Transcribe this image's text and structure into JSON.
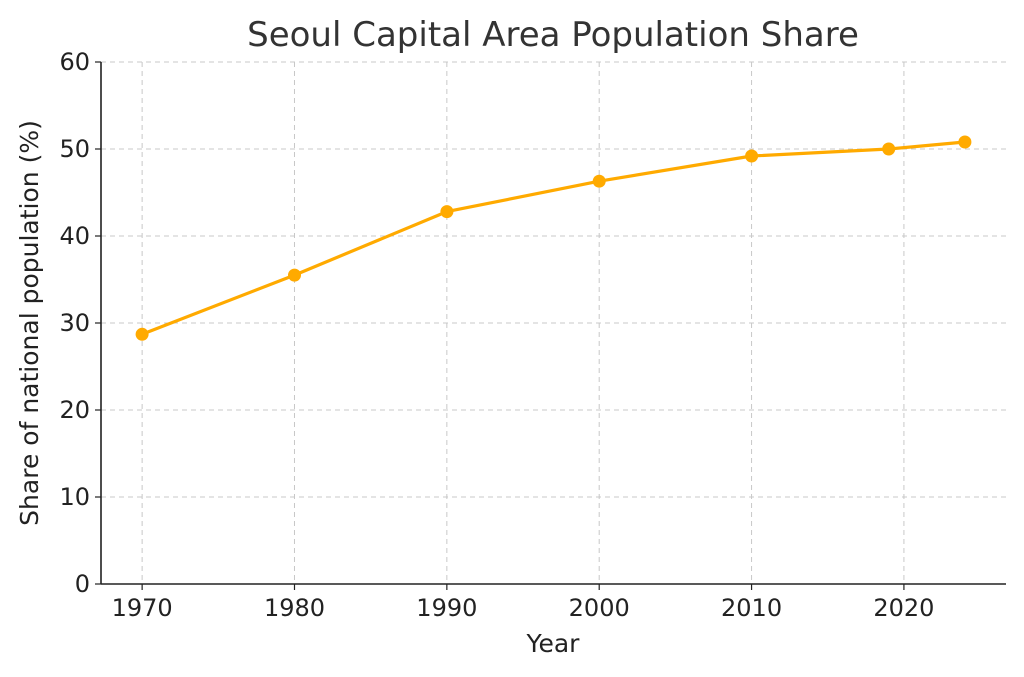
{
  "chart_data": {
    "type": "line",
    "title": "Seoul Capital Area Population Share",
    "xlabel": "Year",
    "ylabel": "Share of national population (%)",
    "x": [
      1970,
      1980,
      1990,
      2000,
      2010,
      2019,
      2024
    ],
    "series": [
      {
        "values": [
          28.7,
          35.5,
          42.8,
          46.3,
          49.2,
          50.0,
          50.8
        ]
      }
    ],
    "xticks": [
      1970,
      1980,
      1990,
      2000,
      2010,
      2020
    ],
    "xtick_labels": [
      "1970",
      "1980",
      "1990",
      "2000",
      "2010",
      "2020"
    ],
    "yticks": [
      0,
      10,
      20,
      30,
      40,
      50,
      60
    ],
    "ytick_labels": [
      "0",
      "10",
      "20",
      "30",
      "40",
      "50",
      "60"
    ],
    "xlim": [
      1967.3,
      2026.7
    ],
    "ylim": [
      0,
      60
    ],
    "grid": true,
    "line_color": "#FFAA00"
  }
}
